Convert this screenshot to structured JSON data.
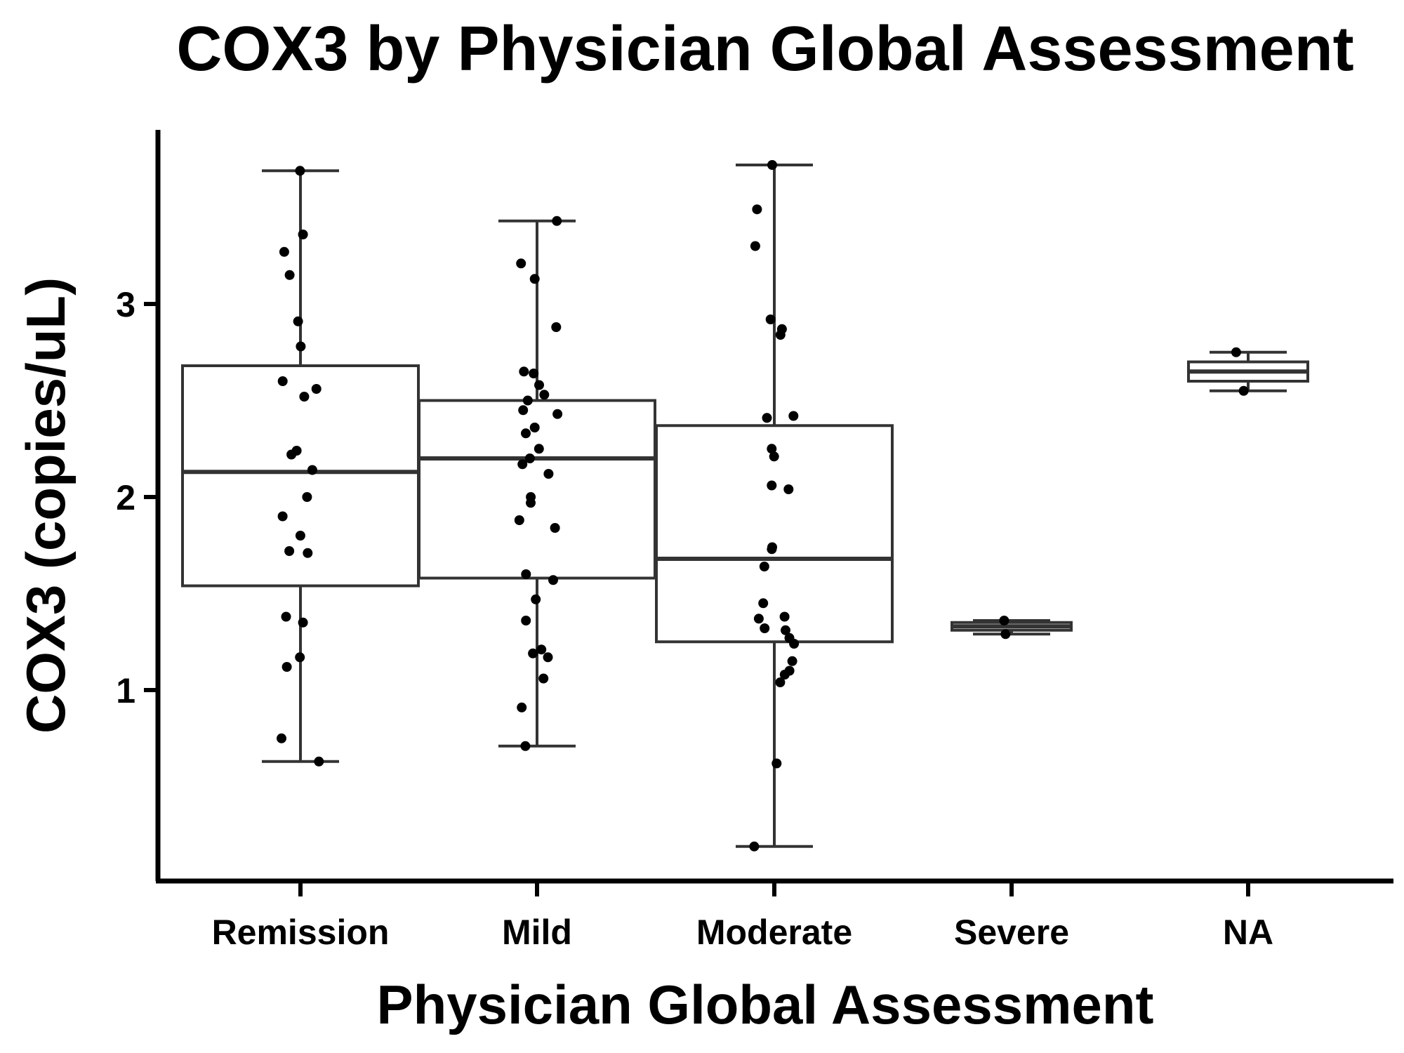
{
  "chart_data": {
    "type": "box",
    "title": "COX3 by Physician Global Assessment",
    "xlabel": "Physician Global Assessment",
    "ylabel": "COX3 (copies/uL)",
    "ylim": [
      0.05,
      3.95
    ],
    "yticks": [
      1,
      2,
      3
    ],
    "grid": false,
    "legend": "none",
    "categories": [
      "Remission",
      "Mild",
      "Moderate",
      "Severe",
      "NA"
    ],
    "boxes": [
      {
        "category": "Remission",
        "q1": 1.54,
        "median": 2.13,
        "q3": 2.68,
        "whisker_low": 0.63,
        "whisker_high": 3.69,
        "points": [
          3.69,
          3.36,
          3.27,
          3.15,
          2.91,
          2.78,
          2.6,
          2.56,
          2.52,
          2.24,
          2.22,
          2.14,
          2.0,
          1.9,
          1.8,
          1.72,
          1.71,
          1.38,
          1.35,
          1.17,
          1.12,
          0.75,
          0.63
        ]
      },
      {
        "category": "Mild",
        "q1": 1.58,
        "median": 2.2,
        "q3": 2.5,
        "whisker_low": 0.71,
        "whisker_high": 3.43,
        "points": [
          3.43,
          3.21,
          3.13,
          2.88,
          2.65,
          2.64,
          2.58,
          2.53,
          2.5,
          2.45,
          2.43,
          2.36,
          2.33,
          2.25,
          2.2,
          2.17,
          2.12,
          2.0,
          1.97,
          1.88,
          1.84,
          1.6,
          1.57,
          1.47,
          1.36,
          1.21,
          1.19,
          1.17,
          1.06,
          0.91,
          0.71
        ]
      },
      {
        "category": "Moderate",
        "q1": 1.25,
        "median": 1.68,
        "q3": 2.37,
        "whisker_low": 0.19,
        "whisker_high": 3.72,
        "points": [
          3.72,
          3.49,
          3.3,
          2.92,
          2.87,
          2.84,
          2.42,
          2.41,
          2.25,
          2.21,
          2.06,
          2.04,
          1.74,
          1.73,
          1.64,
          1.45,
          1.38,
          1.37,
          1.32,
          1.31,
          1.27,
          1.24,
          1.15,
          1.1,
          1.08,
          1.04,
          0.62,
          0.19
        ]
      },
      {
        "category": "Severe",
        "q1": 1.31,
        "median": 1.33,
        "q3": 1.35,
        "whisker_low": 1.29,
        "whisker_high": 1.36,
        "points": [
          1.36,
          1.29
        ]
      },
      {
        "category": "NA",
        "q1": 2.6,
        "median": 2.65,
        "q3": 2.7,
        "whisker_low": 2.55,
        "whisker_high": 2.75,
        "points": [
          2.75,
          2.55
        ]
      }
    ]
  }
}
